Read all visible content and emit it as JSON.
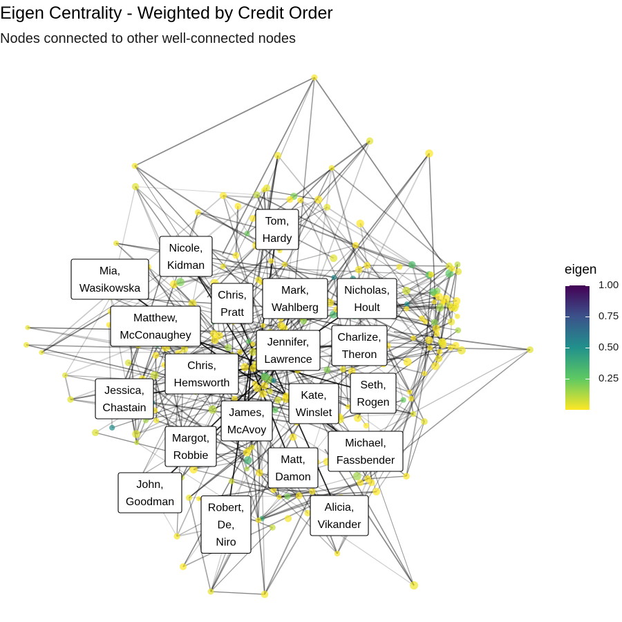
{
  "title": "Eigen Centrality - Weighted by Credit Order",
  "subtitle": "Nodes connected to other well-connected nodes",
  "chart_data": {
    "type": "network",
    "color_scale": {
      "name": "eigen",
      "palette": "viridis",
      "range": [
        0.0,
        1.0
      ],
      "ticks": [
        {
          "value": 1.0,
          "label": "1.00"
        },
        {
          "value": 0.75,
          "label": "0.75"
        },
        {
          "value": 0.5,
          "label": "0.50"
        },
        {
          "value": 0.25,
          "label": "0.25"
        }
      ],
      "colors": [
        "#fde725",
        "#5ec962",
        "#21918c",
        "#3b528b",
        "#440154"
      ]
    },
    "labeled_nodes": [
      {
        "id": "tom-hardy",
        "lines": [
          "Tom,",
          "Hardy"
        ]
      },
      {
        "id": "nicole-kidman",
        "lines": [
          "Nicole,",
          "Kidman"
        ]
      },
      {
        "id": "mia-wasikowska",
        "lines": [
          "Mia,",
          "Wasikowska"
        ]
      },
      {
        "id": "chris-pratt",
        "lines": [
          "Chris,",
          "Pratt"
        ]
      },
      {
        "id": "mark-wahlberg",
        "lines": [
          "Mark,",
          "Wahlberg"
        ]
      },
      {
        "id": "nicholas-hoult",
        "lines": [
          "Nicholas,",
          "Hoult"
        ]
      },
      {
        "id": "matthew-mcconaughey",
        "lines": [
          "Matthew,",
          "McConaughey"
        ]
      },
      {
        "id": "jennifer-lawrence",
        "lines": [
          "Jennifer,",
          "Lawrence"
        ]
      },
      {
        "id": "charlize-theron",
        "lines": [
          "Charlize,",
          "Theron"
        ]
      },
      {
        "id": "chris-hemsworth",
        "lines": [
          "Chris,",
          "Hemsworth"
        ]
      },
      {
        "id": "jessica-chastain",
        "lines": [
          "Jessica,",
          "Chastain"
        ]
      },
      {
        "id": "seth-rogen",
        "lines": [
          "Seth,",
          "Rogen"
        ]
      },
      {
        "id": "kate-winslet",
        "lines": [
          "Kate,",
          "Winslet"
        ]
      },
      {
        "id": "james-mcavoy",
        "lines": [
          "James,",
          "McAvoy"
        ]
      },
      {
        "id": "margot-robbie",
        "lines": [
          "Margot,",
          "Robbie"
        ]
      },
      {
        "id": "michael-fassbender",
        "lines": [
          "Michael,",
          "Fassbender"
        ]
      },
      {
        "id": "matt-damon",
        "lines": [
          "Matt,",
          "Damon"
        ]
      },
      {
        "id": "john-goodman",
        "lines": [
          "John,",
          "Goodman"
        ]
      },
      {
        "id": "robert-de-niro",
        "lines": [
          "Robert,",
          "De,",
          "Niro"
        ]
      },
      {
        "id": "alicia-vikander",
        "lines": [
          "Alicia,",
          "Vikander"
        ]
      }
    ]
  }
}
